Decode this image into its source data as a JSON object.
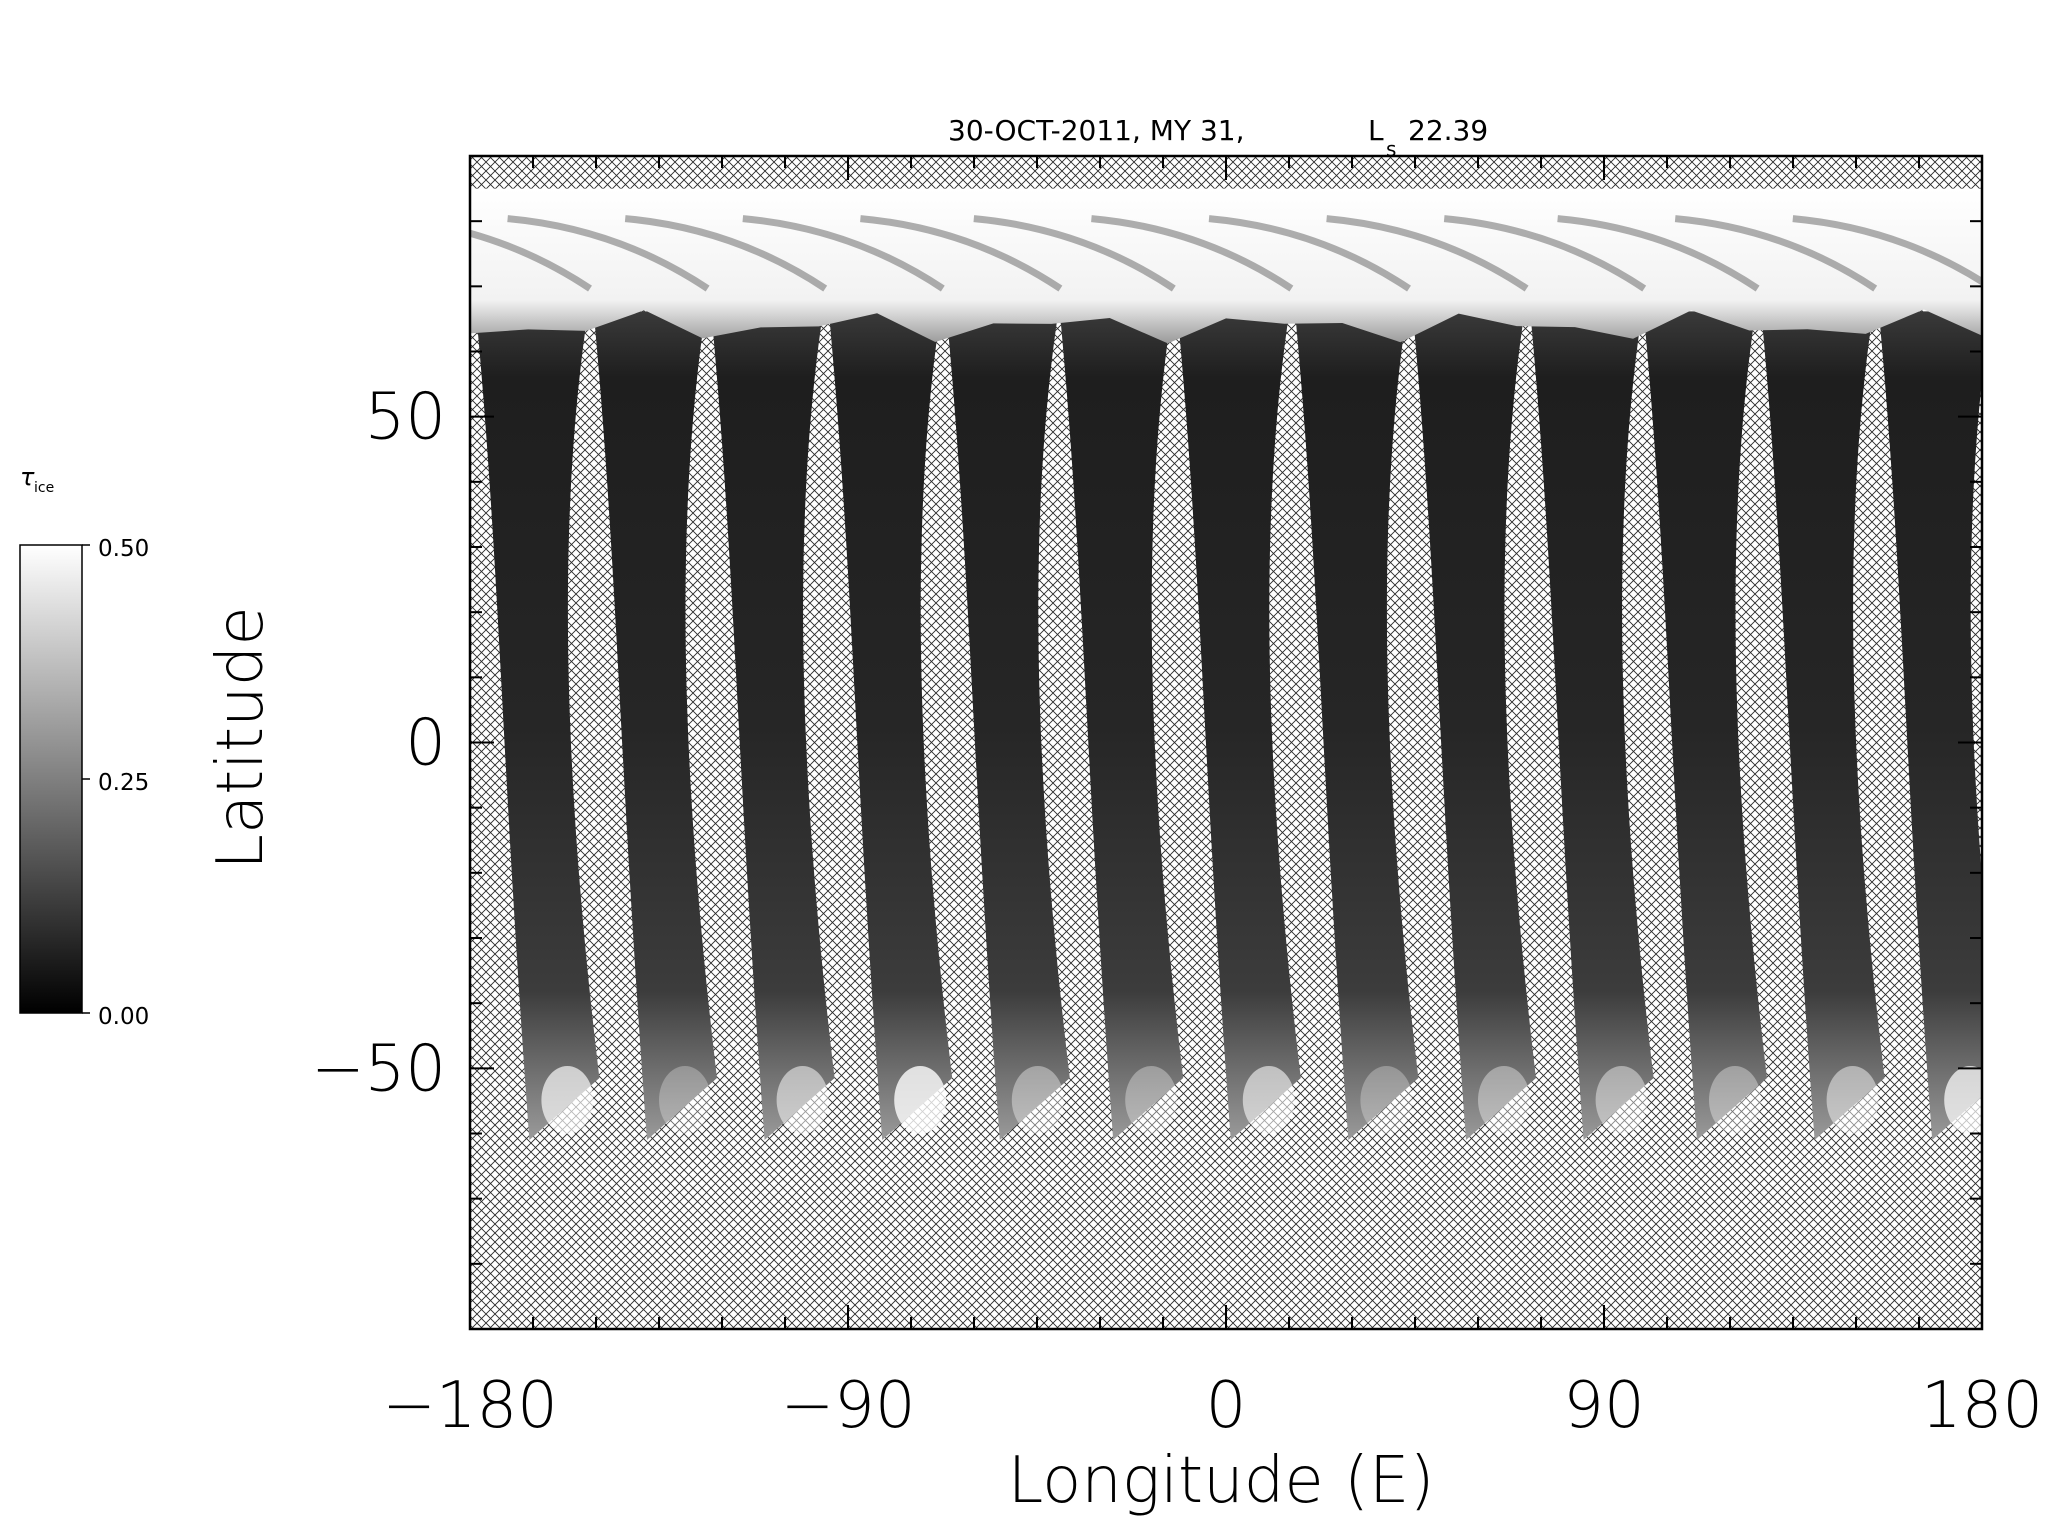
{
  "chart_data": {
    "type": "heatmap",
    "title": "30-OCT-2011, MY 31,",
    "title_ls_symbol": "L",
    "title_ls_subscript": "s",
    "title_ls_value": "22.39",
    "xlabel": "Longitude (E)",
    "ylabel": "Latitude",
    "xlim": [
      -180,
      180
    ],
    "ylim": [
      -90,
      90
    ],
    "x_ticks": [
      -180,
      -90,
      0,
      90,
      180
    ],
    "x_tick_labels": [
      "−180",
      "−90",
      "0",
      "90",
      "180"
    ],
    "y_ticks": [
      -50,
      0,
      50
    ],
    "y_tick_labels": [
      "−50",
      "0",
      "50"
    ],
    "grid": false,
    "no_data_pattern": "crosshatch",
    "colorbar": {
      "label_symbol": "τ",
      "label_subscript": "ice",
      "min": 0.0,
      "max": 0.5,
      "tick_values": [
        0.0,
        0.25,
        0.5
      ],
      "tick_labels": [
        "0.00",
        "0.25",
        "0.50"
      ],
      "colormap": "grayscale",
      "placement": "left"
    },
    "north_cap_edge_lat": 64,
    "orbit_swaths": [
      {
        "lon_top": -180,
        "lon_bottom": -163,
        "lat_south_end": -61,
        "south_opacity": 0.28
      },
      {
        "lon_top": -152,
        "lon_bottom": -135,
        "lat_south_end": -61,
        "south_opacity": 0.12
      },
      {
        "lon_top": -124,
        "lon_bottom": -107,
        "lat_south_end": -61,
        "south_opacity": 0.22
      },
      {
        "lon_top": -96,
        "lon_bottom": -79,
        "lat_south_end": -61,
        "south_opacity": 0.33
      },
      {
        "lon_top": -68,
        "lon_bottom": -51,
        "lat_south_end": -61,
        "south_opacity": 0.16
      },
      {
        "lon_top": -41,
        "lon_bottom": -24,
        "lat_south_end": -61,
        "south_opacity": 0.14
      },
      {
        "lon_top": -13,
        "lon_bottom": 4,
        "lat_south_end": -61,
        "south_opacity": 0.24
      },
      {
        "lon_top": 15,
        "lon_bottom": 32,
        "lat_south_end": -61,
        "south_opacity": 0.12
      },
      {
        "lon_top": 43,
        "lon_bottom": 60,
        "lat_south_end": -61,
        "south_opacity": 0.16
      },
      {
        "lon_top": 71,
        "lon_bottom": 88,
        "lat_south_end": -61,
        "south_opacity": 0.18
      },
      {
        "lon_top": 98,
        "lon_bottom": 115,
        "lat_south_end": -61,
        "south_opacity": 0.15
      },
      {
        "lon_top": 126,
        "lon_bottom": 143,
        "lat_south_end": -61,
        "south_opacity": 0.2
      },
      {
        "lon_top": 154,
        "lon_bottom": 171,
        "lat_south_end": -61,
        "south_opacity": 0.3
      }
    ]
  }
}
